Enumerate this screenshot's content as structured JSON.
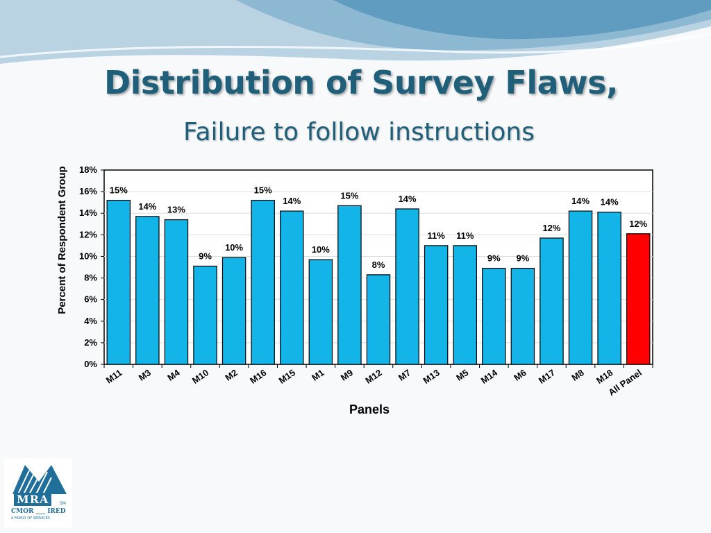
{
  "slide": {
    "title": "Distribution of Survey Flaws,",
    "subtitle": "Failure to follow instructions"
  },
  "logo": {
    "name": "MRA",
    "sub1": "CMOR ___ IRED",
    "sub2": "A FAMILY OF SERVICES"
  },
  "colors": {
    "bar": "#13b5e8",
    "highlight_bar": "#ff0000",
    "title": "#1f5f7a",
    "swoosh": "#3f87ad"
  },
  "chart_data": {
    "type": "bar",
    "title": "",
    "xlabel": "Panels",
    "ylabel": "Percent of Respondent Group",
    "ylim": [
      0,
      18
    ],
    "yticks": [
      "0%",
      "2%",
      "4%",
      "6%",
      "8%",
      "10%",
      "12%",
      "14%",
      "16%",
      "18%"
    ],
    "grid": true,
    "categories": [
      "M11",
      "M3",
      "M4",
      "M10",
      "M2",
      "M16",
      "M15",
      "M1",
      "M9",
      "M12",
      "M7",
      "M13",
      "M5",
      "M14",
      "M6",
      "M17",
      "M8",
      "M18",
      "All Panel"
    ],
    "values": [
      15.2,
      13.7,
      13.4,
      9.1,
      9.9,
      15.2,
      14.2,
      9.7,
      14.7,
      8.3,
      14.4,
      11.0,
      11.0,
      8.9,
      8.9,
      11.7,
      14.2,
      14.1,
      12.1
    ],
    "labels": [
      "15%",
      "14%",
      "13%",
      "9%",
      "10%",
      "15%",
      "14%",
      "10%",
      "15%",
      "8%",
      "14%",
      "11%",
      "11%",
      "9%",
      "9%",
      "12%",
      "14%",
      "14%",
      "12%"
    ],
    "highlight": "All Panel"
  }
}
